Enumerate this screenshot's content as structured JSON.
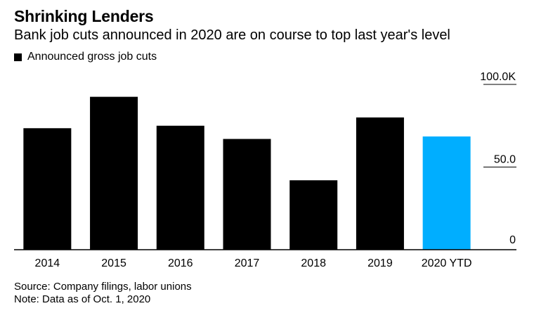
{
  "title": "Shrinking Lenders",
  "subtitle": "Bank job cuts announced in 2020 are on course to top last year's level",
  "legend": {
    "label": "Announced gross job cuts",
    "color": "#000000"
  },
  "source": "Source: Company filings, labor unions",
  "note": "Note: Data as of Oct. 1, 2020",
  "colors": {
    "bar": "#000000",
    "highlight": "#00aeff",
    "axis": "#000000"
  },
  "chart_data": {
    "type": "bar",
    "categories": [
      "2014",
      "2015",
      "2016",
      "2017",
      "2018",
      "2019",
      "2020 YTD"
    ],
    "series": [
      {
        "name": "Announced gross job cuts",
        "values": [
          73.5,
          92.5,
          75,
          67,
          42,
          80,
          68.5
        ]
      }
    ],
    "highlight_index": 6,
    "ylim": [
      0,
      100
    ],
    "yticks": [
      0,
      50,
      100
    ],
    "ytick_labels": [
      "0",
      "50.0",
      "100.0K"
    ],
    "ylabel": "",
    "xlabel": "",
    "grid": false,
    "y_axis_position": "right",
    "legend_position": "top-left"
  }
}
